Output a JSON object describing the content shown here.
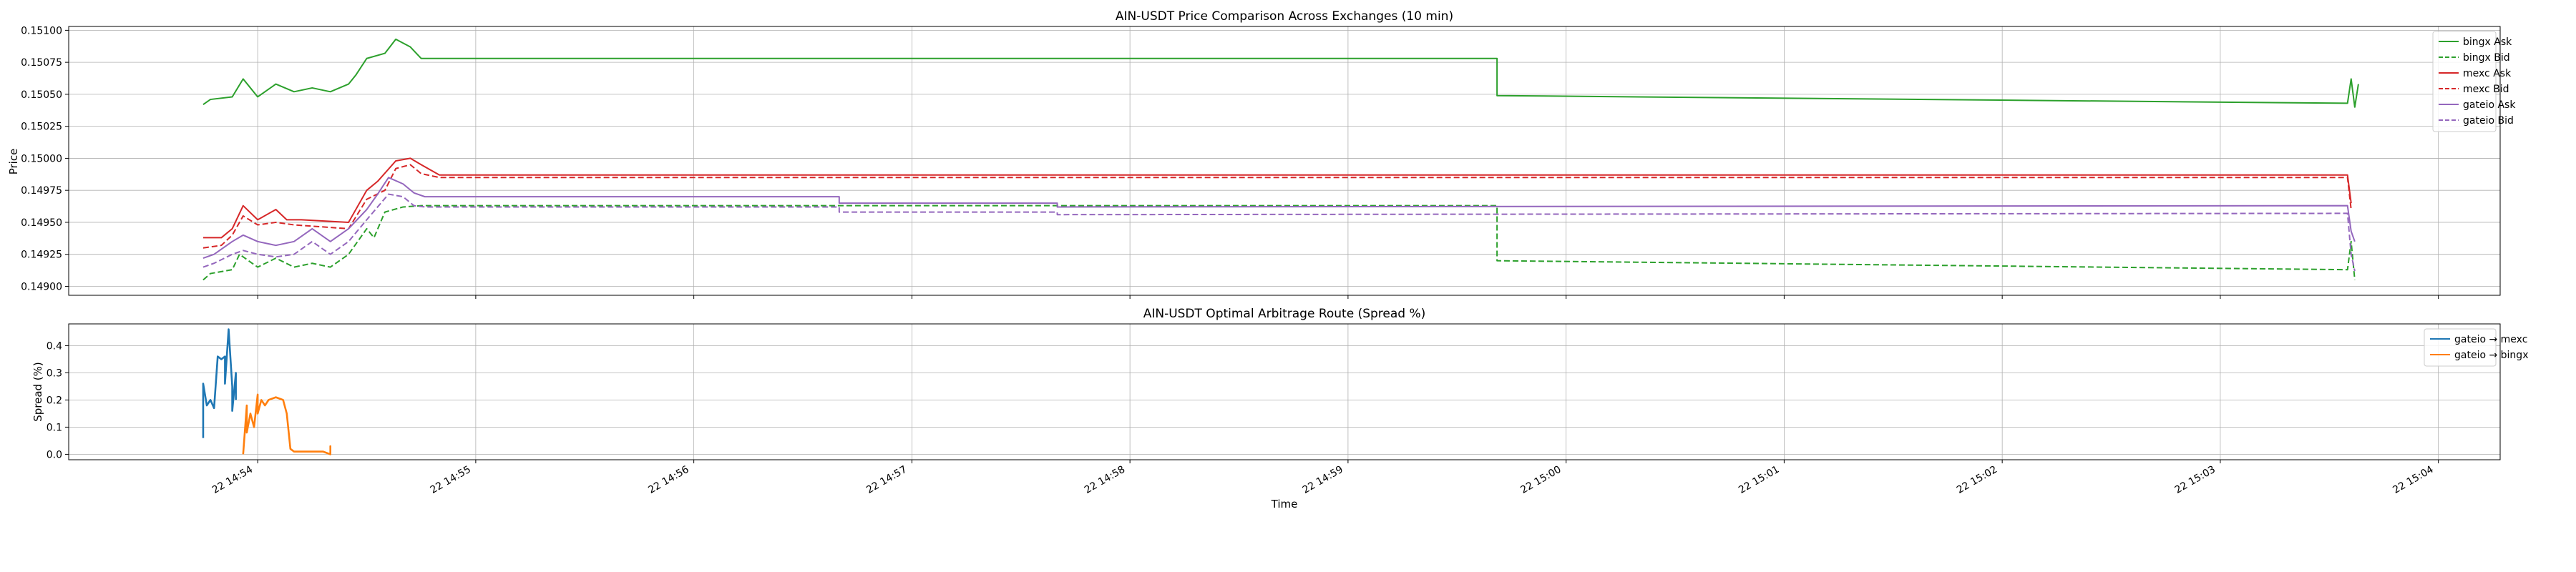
{
  "chart_data": [
    {
      "type": "line",
      "title": "AIN-USDT Price Comparison Across Exchanges (10 min)",
      "xlabel": "",
      "ylabel": "Price",
      "ylim": [
        0.14893,
        0.15103
      ],
      "xlim": [
        "22 14:53:08",
        "22 15:04:17"
      ],
      "yticks": [
        "0.14900",
        "0.14925",
        "0.14950",
        "0.14975",
        "0.15000",
        "0.15025",
        "0.15050",
        "0.15075",
        "0.15100"
      ],
      "ytick_values": [
        0.149,
        0.14925,
        0.1495,
        0.14975,
        0.15,
        0.15025,
        0.1505,
        0.15075,
        0.151
      ],
      "grid": true,
      "legend_position": "top-right",
      "series": [
        {
          "name": "bingx Ask",
          "color": "#2ca02c",
          "dash": "solid",
          "x": [
            "22 14:53:45",
            "22 14:53:47",
            "22 14:53:53",
            "22 14:53:56",
            "22 14:53:58",
            "22 14:54:00",
            "22 14:54:05",
            "22 14:54:10",
            "22 14:54:15",
            "22 14:54:20",
            "22 14:54:25",
            "22 14:54:27",
            "22 14:54:30",
            "22 14:54:35",
            "22 14:54:38",
            "22 14:54:42",
            "22 14:54:45",
            "22 14:59:41",
            "22 14:59:41",
            "22 15:03:35",
            "22 15:03:36",
            "22 15:03:37",
            "22 15:03:38"
          ],
          "y": [
            0.15042,
            0.15046,
            0.15048,
            0.15062,
            0.15055,
            0.15048,
            0.15058,
            0.15052,
            0.15055,
            0.15052,
            0.15058,
            0.15065,
            0.15078,
            0.15082,
            0.15093,
            0.15087,
            0.15078,
            0.15078,
            0.15049,
            0.15043,
            0.15062,
            0.1504,
            0.15058
          ]
        },
        {
          "name": "bingx Bid",
          "color": "#2ca02c",
          "dash": "dashed",
          "x": [
            "22 14:53:45",
            "22 14:53:47",
            "22 14:53:53",
            "22 14:53:55",
            "22 14:54:00",
            "22 14:54:05",
            "22 14:54:10",
            "22 14:54:15",
            "22 14:54:20",
            "22 14:54:25",
            "22 14:54:30",
            "22 14:54:32",
            "22 14:54:35",
            "22 14:54:40",
            "22 14:54:45",
            "22 14:59:41",
            "22 14:59:41",
            "22 15:03:35",
            "22 15:03:36",
            "22 15:03:37"
          ],
          "y": [
            0.14905,
            0.1491,
            0.14913,
            0.14925,
            0.14915,
            0.14922,
            0.14915,
            0.14918,
            0.14915,
            0.14925,
            0.14945,
            0.14938,
            0.14958,
            0.14962,
            0.14963,
            0.14963,
            0.1492,
            0.14913,
            0.14935,
            0.14905
          ]
        },
        {
          "name": "mexc Ask",
          "color": "#d62728",
          "dash": "solid",
          "x": [
            "22 14:53:45",
            "22 14:53:50",
            "22 14:53:53",
            "22 14:53:56",
            "22 14:54:00",
            "22 14:54:05",
            "22 14:54:08",
            "22 14:54:12",
            "22 14:54:25",
            "22 14:54:30",
            "22 14:54:33",
            "22 14:54:38",
            "22 14:54:42",
            "22 14:54:45",
            "22 14:54:50",
            "22 15:03:35",
            "22 15:03:36"
          ],
          "y": [
            0.14938,
            0.14938,
            0.14945,
            0.14963,
            0.14952,
            0.1496,
            0.14952,
            0.14952,
            0.1495,
            0.14975,
            0.14982,
            0.14998,
            0.15,
            0.14995,
            0.14987,
            0.14987,
            0.14965
          ]
        },
        {
          "name": "mexc Bid",
          "color": "#d62728",
          "dash": "dashed",
          "x": [
            "22 14:53:45",
            "22 14:53:50",
            "22 14:53:53",
            "22 14:53:56",
            "22 14:54:00",
            "22 14:54:05",
            "22 14:54:10",
            "22 14:54:25",
            "22 14:54:30",
            "22 14:54:35",
            "22 14:54:38",
            "22 14:54:42",
            "22 14:54:45",
            "22 14:54:50",
            "22 15:03:35",
            "22 15:03:36"
          ],
          "y": [
            0.1493,
            0.14932,
            0.1494,
            0.14955,
            0.14948,
            0.1495,
            0.14948,
            0.14945,
            0.14968,
            0.14975,
            0.14992,
            0.14995,
            0.14988,
            0.14985,
            0.14985,
            0.1496
          ]
        },
        {
          "name": "gateio Ask",
          "color": "#9467bd",
          "dash": "solid",
          "x": [
            "22 14:53:45",
            "22 14:53:48",
            "22 14:53:53",
            "22 14:53:56",
            "22 14:54:00",
            "22 14:54:05",
            "22 14:54:10",
            "22 14:54:15",
            "22 14:54:20",
            "22 14:54:25",
            "22 14:54:30",
            "22 14:54:33",
            "22 14:54:36",
            "22 14:54:40",
            "22 14:54:43",
            "22 14:54:46",
            "22 14:56:40",
            "22 14:56:40",
            "22 14:57:40",
            "22 14:57:40",
            "22 15:03:35",
            "22 15:03:36",
            "22 15:03:37"
          ],
          "y": [
            0.14922,
            0.14925,
            0.14935,
            0.1494,
            0.14935,
            0.14932,
            0.14935,
            0.14945,
            0.14935,
            0.14945,
            0.1496,
            0.14972,
            0.14985,
            0.1498,
            0.14973,
            0.1497,
            0.1497,
            0.14965,
            0.14965,
            0.14962,
            0.14963,
            0.14943,
            0.14935
          ]
        },
        {
          "name": "gateio Bid",
          "color": "#9467bd",
          "dash": "dashed",
          "x": [
            "22 14:53:45",
            "22 14:53:48",
            "22 14:53:53",
            "22 14:53:56",
            "22 14:54:00",
            "22 14:54:05",
            "22 14:54:10",
            "22 14:54:15",
            "22 14:54:20",
            "22 14:54:25",
            "22 14:54:30",
            "22 14:54:33",
            "22 14:54:36",
            "22 14:54:40",
            "22 14:54:43",
            "22 14:54:46",
            "22 14:56:40",
            "22 14:56:40",
            "22 14:57:40",
            "22 14:57:40",
            "22 15:03:35",
            "22 15:03:36",
            "22 15:03:37"
          ],
          "y": [
            0.14915,
            0.14918,
            0.14925,
            0.14928,
            0.14925,
            0.14923,
            0.14925,
            0.14935,
            0.14925,
            0.14935,
            0.14952,
            0.14962,
            0.14972,
            0.1497,
            0.14963,
            0.14962,
            0.14962,
            0.14958,
            0.14958,
            0.14956,
            0.14957,
            0.14925,
            0.14912
          ]
        }
      ]
    },
    {
      "type": "line",
      "title": "AIN-USDT Optimal Arbitrage Route (Spread %)",
      "xlabel": "Time",
      "ylabel": "Spread (%)",
      "ylim": [
        -0.02,
        0.48
      ],
      "xlim": [
        "22 14:53:08",
        "22 15:04:17"
      ],
      "yticks": [
        "0.0",
        "0.1",
        "0.2",
        "0.3",
        "0.4"
      ],
      "ytick_values": [
        0,
        0.1,
        0.2,
        0.3,
        0.4
      ],
      "xticks": [
        "22 14:54",
        "22 14:55",
        "22 14:56",
        "22 14:57",
        "22 14:58",
        "22 14:59",
        "22 15:00",
        "22 15:01",
        "22 15:02",
        "22 15:03",
        "22 15:04"
      ],
      "grid": true,
      "legend_position": "top-right",
      "series": [
        {
          "name": "gateio → mexc",
          "color": "#1f77b4",
          "dash": "solid",
          "x": [
            "22 14:53:45",
            "22 14:53:45",
            "22 14:53:46",
            "22 14:53:47",
            "22 14:53:48",
            "22 14:53:49",
            "22 14:53:50",
            "22 14:53:51",
            "22 14:53:51",
            "22 14:53:52",
            "22 14:53:53",
            "22 14:53:53",
            "22 14:53:54",
            "22 14:53:54"
          ],
          "y": [
            0.06,
            0.26,
            0.18,
            0.2,
            0.17,
            0.36,
            0.35,
            0.36,
            0.26,
            0.46,
            0.25,
            0.16,
            0.3,
            0.2
          ]
        },
        {
          "name": "gateio → bingx",
          "color": "#ff7f0e",
          "dash": "solid",
          "x": [
            "22 14:53:56",
            "22 14:53:57",
            "22 14:53:57",
            "22 14:53:58",
            "22 14:53:59",
            "22 14:54:00",
            "22 14:54:00",
            "22 14:54:01",
            "22 14:54:02",
            "22 14:54:03",
            "22 14:54:05",
            "22 14:54:07",
            "22 14:54:08",
            "22 14:54:09",
            "22 14:54:10",
            "22 14:54:15",
            "22 14:54:18",
            "22 14:54:20",
            "22 14:54:20",
            "22 14:54:20"
          ],
          "y": [
            0.0,
            0.18,
            0.08,
            0.15,
            0.1,
            0.22,
            0.15,
            0.2,
            0.18,
            0.2,
            0.21,
            0.2,
            0.15,
            0.02,
            0.01,
            0.01,
            0.01,
            0.0,
            0.03,
            0.0
          ]
        }
      ]
    }
  ]
}
